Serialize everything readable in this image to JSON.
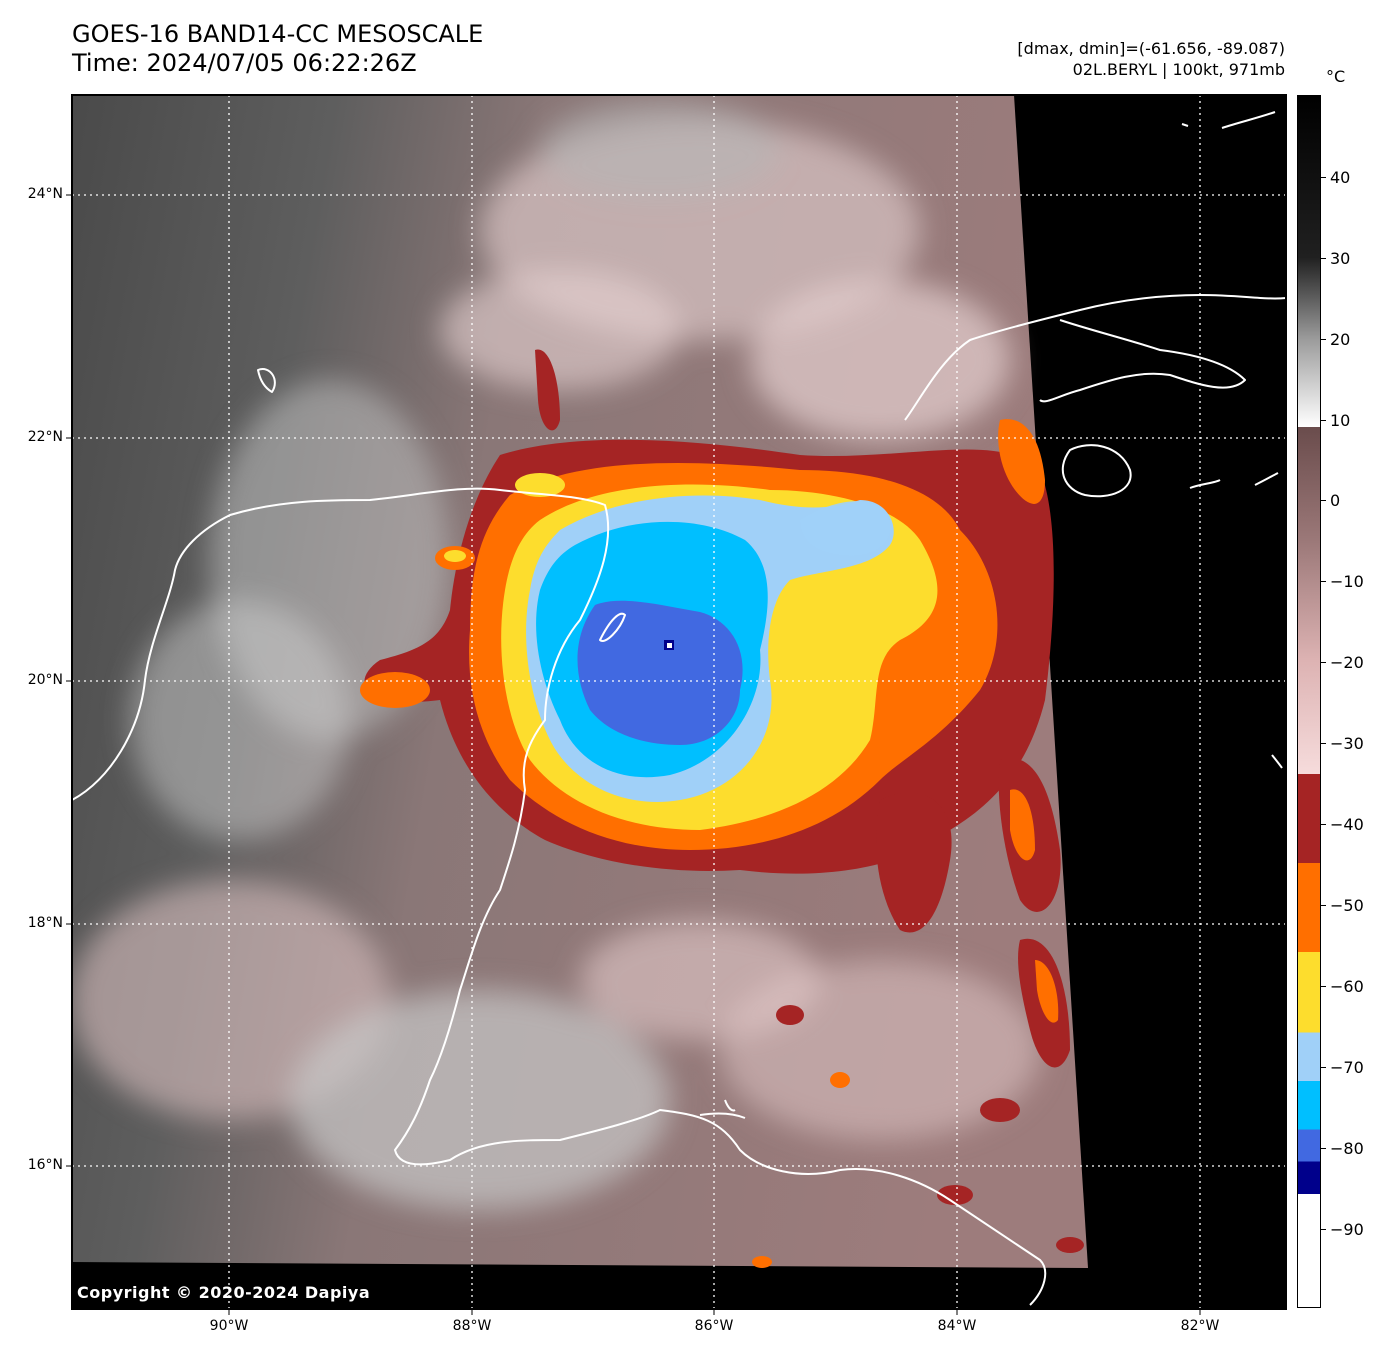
{
  "header": {
    "title_line1": "GOES-16 BAND14-CC MESOSCALE",
    "title_line2": "Time: 2024/07/05 06:22:26Z",
    "info_line1": "[dmax, dmin]=(-61.656, -89.087)",
    "info_line2": "02L.BERYL | 100kt, 971mb"
  },
  "map": {
    "extent": {
      "lon_min": -91.3,
      "lon_max": -81.3,
      "lat_min": 14.8,
      "lat_max": 24.8
    },
    "storm_center": {
      "lon": -86.35,
      "lat": 20.3
    },
    "lat_labels": [
      "24°N",
      "22°N",
      "20°N",
      "18°N",
      "16°N"
    ],
    "lon_labels": [
      "90°W",
      "88°W",
      "86°W",
      "84°W",
      "82°W"
    ],
    "copyright": "Copyright © 2020-2024 Dapiya",
    "colors": {
      "coastline": "#ffffff",
      "gridline": "#ffffff",
      "no_data": "#000000",
      "warm_land": "#5c5c5c",
      "cloud_mauve": "#9d7878"
    }
  },
  "colorbar": {
    "unit": "°C",
    "labels": [
      "40",
      "30",
      "20",
      "10",
      "0",
      "−10",
      "−20",
      "−30",
      "−40",
      "−50",
      "−60",
      "−70",
      "−80",
      "−90"
    ],
    "range": [
      -100,
      50
    ],
    "bands": [
      {
        "from": -100,
        "to": -86,
        "color": "#ffffff"
      },
      {
        "from": -86,
        "to": -82,
        "color": "#00008b"
      },
      {
        "from": -82,
        "to": -78,
        "color": "#4169e1"
      },
      {
        "from": -78,
        "to": -72,
        "color": "#00bfff"
      },
      {
        "from": -72,
        "to": -66,
        "color": "#a0d0f8"
      },
      {
        "from": -66,
        "to": -56,
        "color": "#fddd2d"
      },
      {
        "from": -56,
        "to": -45,
        "color": "#ff6f00"
      },
      {
        "from": -45,
        "to": -34,
        "color": "#a52424"
      }
    ],
    "gradient_stops": [
      {
        "value": -34,
        "color": "#f6dcdc"
      },
      {
        "value": -20,
        "color": "#ddb3b3"
      },
      {
        "value": -5,
        "color": "#9b7878"
      },
      {
        "value": 9,
        "color": "#6a4c4c"
      },
      {
        "value": 9,
        "color": "#ffffff"
      },
      {
        "value": 20,
        "color": "#9a9a9a"
      },
      {
        "value": 30,
        "color": "#202020"
      },
      {
        "value": 50,
        "color": "#000000"
      }
    ]
  }
}
